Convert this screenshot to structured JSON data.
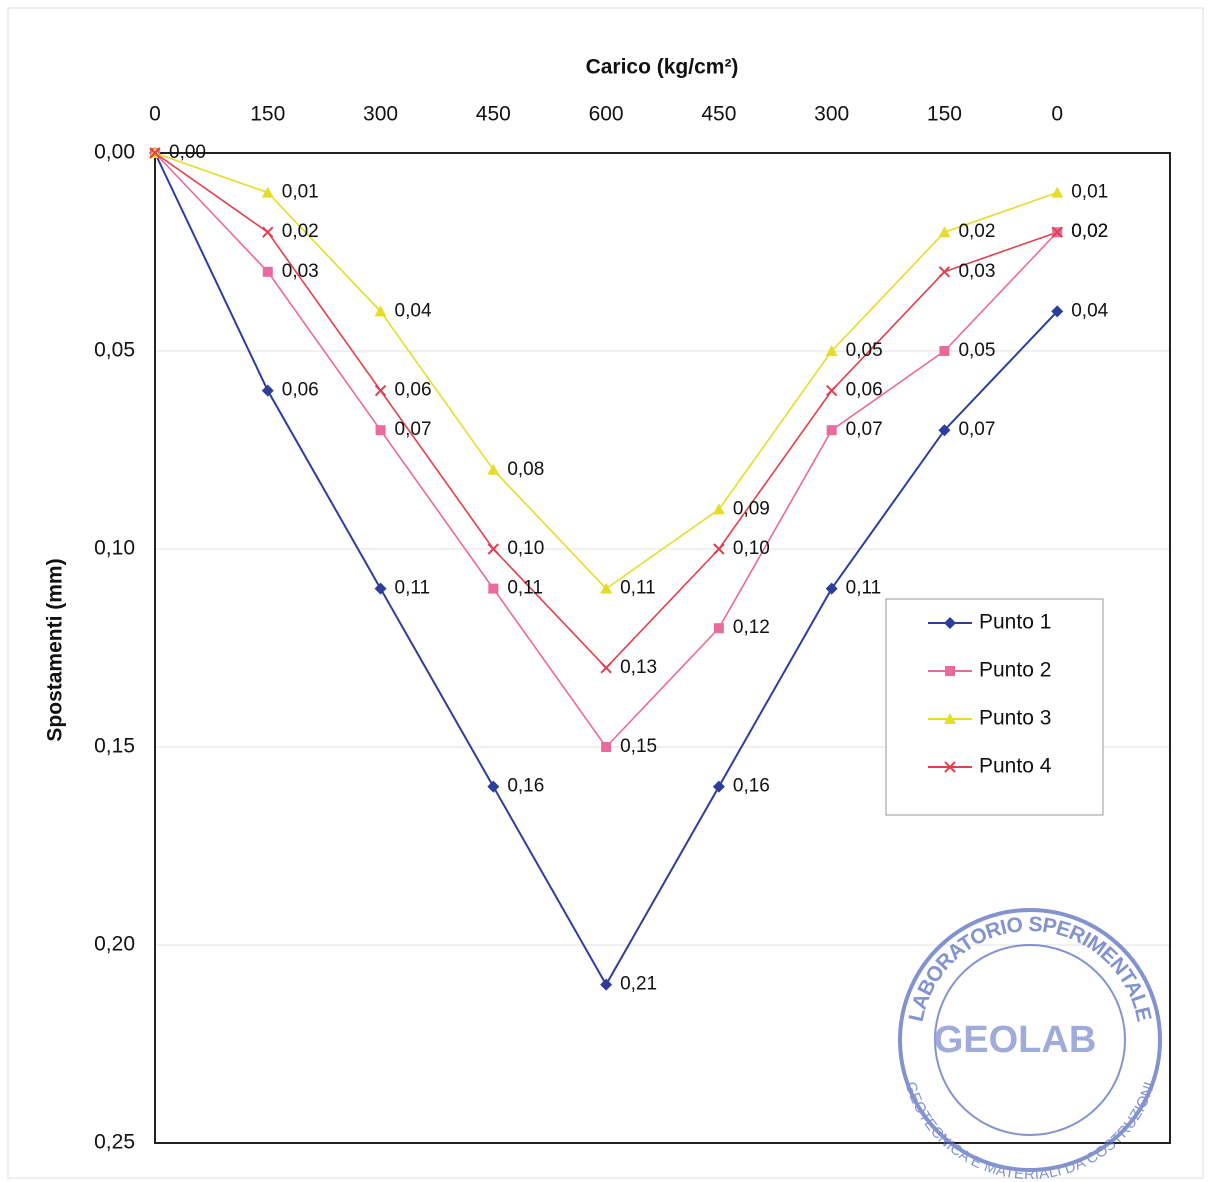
{
  "chart_data": {
    "type": "line",
    "x_label": "Carico (kg/cm²)",
    "y_label": "Spostamenti (mm)",
    "categories": [
      "0",
      "150",
      "300",
      "450",
      "600",
      "450",
      "300",
      "150",
      "0"
    ],
    "ylim": [
      0,
      0.25
    ],
    "y_inverted": true,
    "grid": true,
    "legend": "right",
    "yticks": [
      {
        "value": 0,
        "label": "0,00"
      },
      {
        "value": 0.05,
        "label": "0,05"
      },
      {
        "value": 0.1,
        "label": "0,10"
      },
      {
        "value": 0.15,
        "label": "0,15"
      },
      {
        "value": 0.2,
        "label": "0,20"
      },
      {
        "value": 0.25,
        "label": "0,25"
      }
    ],
    "series": [
      {
        "name": "Punto 1",
        "color": "#2c3d9c",
        "marker": "diamond",
        "values": [
          0,
          0.06,
          0.11,
          0.16,
          0.21,
          0.16,
          0.11,
          0.07,
          0.04
        ],
        "value_labels": [
          "0,00",
          "0,06",
          "0,11",
          "0,16",
          "0,21",
          "0,16",
          "0,11",
          "0,07",
          "0,04"
        ]
      },
      {
        "name": "Punto 2",
        "color": "#ea6a9e",
        "marker": "square",
        "values": [
          0,
          0.03,
          0.07,
          0.11,
          0.15,
          0.12,
          0.07,
          0.05,
          0.02
        ],
        "value_labels": [
          null,
          "0,03",
          "0,07",
          "0,11",
          "0,15",
          "0,12",
          "0,07",
          "0,05",
          "0,02"
        ]
      },
      {
        "name": "Punto 3",
        "color": "#e6dc2a",
        "marker": "triangle",
        "values": [
          0,
          0.01,
          0.04,
          0.08,
          0.11,
          0.09,
          0.05,
          0.02,
          0.01
        ],
        "value_labels": [
          null,
          "0,01",
          "0,04",
          "0,08",
          "0,11",
          "0,09",
          "0,05",
          "0,02",
          "0,01"
        ]
      },
      {
        "name": "Punto 4",
        "color": "#e0404e",
        "marker": "x",
        "values": [
          0,
          0.02,
          0.06,
          0.1,
          0.13,
          0.1,
          0.06,
          0.03,
          0.02
        ],
        "value_labels": [
          null,
          "0,02",
          "0,06",
          "0,10",
          "0,13",
          "0,10",
          "0,06",
          "0,03",
          "0,02"
        ]
      }
    ]
  },
  "stamp": {
    "top": "LABORATORIO SPERIMENTALE",
    "name": "GEOLAB",
    "bottom": "GEOTECNICA E MATERIALI DA COSTRUZIONI"
  }
}
